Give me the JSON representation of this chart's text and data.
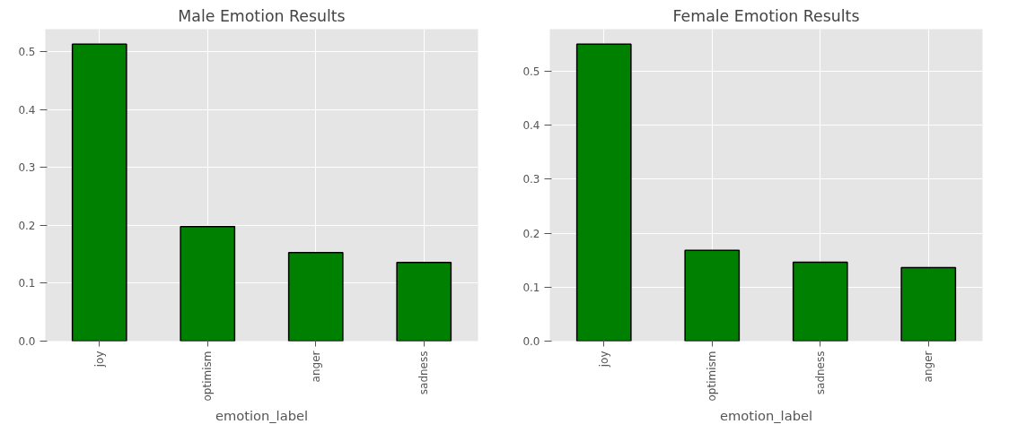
{
  "chart_data": [
    {
      "type": "bar",
      "title": "Male Emotion Results",
      "xlabel": "emotion_label",
      "categories": [
        "joy",
        "optimism",
        "anger",
        "sadness"
      ],
      "series": [
        {
          "color": "#008000",
          "values": [
            0.513,
            0.198,
            0.153,
            0.136
          ]
        }
      ],
      "ylim": [
        0,
        0.539
      ],
      "yticks": [
        {
          "value": 0,
          "label": "0.0"
        },
        {
          "value": 0.1,
          "label": "0.1"
        },
        {
          "value": 0.2,
          "label": "0.2"
        },
        {
          "value": 0.3,
          "label": "0.3"
        },
        {
          "value": 0.4,
          "label": "0.4"
        },
        {
          "value": 0.5,
          "label": "0.5"
        }
      ],
      "grid": true
    },
    {
      "type": "bar",
      "title": "Female Emotion Results",
      "xlabel": "emotion_label",
      "categories": [
        "joy",
        "optimism",
        "sadness",
        "anger"
      ],
      "series": [
        {
          "color": "#008000",
          "values": [
            0.55,
            0.168,
            0.146,
            0.136
          ]
        }
      ],
      "ylim": [
        0,
        0.578
      ],
      "yticks": [
        {
          "value": 0,
          "label": "0.0"
        },
        {
          "value": 0.1,
          "label": "0.1"
        },
        {
          "value": 0.2,
          "label": "0.2"
        },
        {
          "value": 0.3,
          "label": "0.3"
        },
        {
          "value": 0.4,
          "label": "0.4"
        },
        {
          "value": 0.5,
          "label": "0.5"
        }
      ],
      "grid": true
    }
  ]
}
